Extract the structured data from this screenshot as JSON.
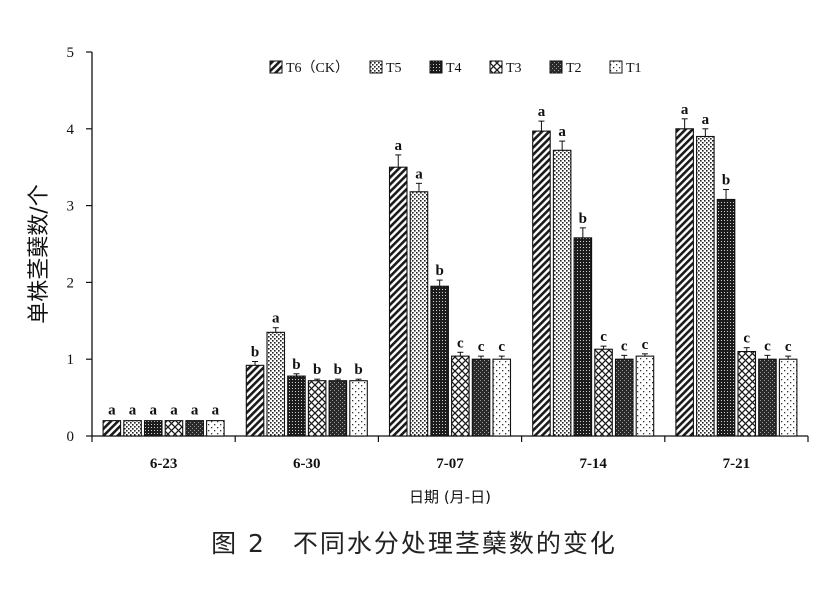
{
  "chart_data": {
    "type": "bar",
    "title": "",
    "xlabel": "日期 (月-日)",
    "ylabel": "单株茎蘖数/个",
    "ylim": [
      0,
      5
    ],
    "yticks": [
      "0",
      "1",
      "2",
      "3",
      "4",
      "5"
    ],
    "grid": false,
    "legend_position": "top",
    "categories": [
      "6-23",
      "6-30",
      "7-07",
      "7-14",
      "7-21"
    ],
    "series": [
      {
        "name": "T6（CK）",
        "pattern": "diag",
        "values": [
          0.2,
          0.92,
          3.5,
          3.97,
          4.0
        ],
        "errors": [
          0.0,
          0.05,
          0.16,
          0.13,
          0.13
        ],
        "letters": [
          "a",
          "b",
          "a",
          "a",
          "a"
        ]
      },
      {
        "name": "T5",
        "pattern": "dots",
        "values": [
          0.2,
          1.35,
          3.18,
          3.72,
          3.9
        ],
        "errors": [
          0.0,
          0.06,
          0.11,
          0.12,
          0.1
        ],
        "letters": [
          "a",
          "a",
          "a",
          "a",
          "a"
        ]
      },
      {
        "name": "T4",
        "pattern": "dense",
        "values": [
          0.2,
          0.78,
          1.95,
          2.58,
          3.08
        ],
        "errors": [
          0.0,
          0.03,
          0.08,
          0.13,
          0.13
        ],
        "letters": [
          "a",
          "b",
          "b",
          "b",
          "b"
        ]
      },
      {
        "name": "T3",
        "pattern": "cross",
        "values": [
          0.2,
          0.72,
          1.04,
          1.13,
          1.1
        ],
        "errors": [
          0.0,
          0.02,
          0.05,
          0.04,
          0.05
        ],
        "letters": [
          "a",
          "b",
          "c",
          "c",
          "c"
        ]
      },
      {
        "name": "T2",
        "pattern": "dark",
        "values": [
          0.2,
          0.72,
          1.0,
          1.0,
          1.0
        ],
        "errors": [
          0.0,
          0.02,
          0.04,
          0.05,
          0.05
        ],
        "letters": [
          "a",
          "b",
          "c",
          "c",
          "c"
        ]
      },
      {
        "name": "T1",
        "pattern": "sparse",
        "values": [
          0.2,
          0.72,
          1.0,
          1.04,
          1.0
        ],
        "errors": [
          0.0,
          0.02,
          0.04,
          0.03,
          0.04
        ],
        "letters": [
          "a",
          "b",
          "c",
          "c",
          "c"
        ]
      }
    ]
  },
  "figure_caption": "图 2　不同水分处理茎蘖数的变化"
}
